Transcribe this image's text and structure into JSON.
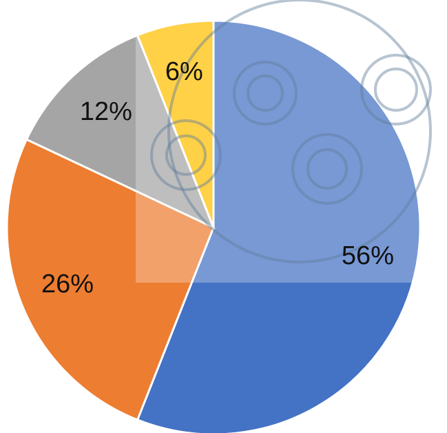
{
  "chart_data": {
    "type": "pie",
    "categories": [
      null,
      null,
      null,
      null
    ],
    "values": [
      56,
      26,
      12,
      6
    ],
    "value_labels": [
      "56%",
      "26%",
      "12%",
      "6%"
    ],
    "colors": [
      "#4472c4",
      "#ed7d31",
      "#a5a5a5",
      "#ffc000"
    ]
  }
}
